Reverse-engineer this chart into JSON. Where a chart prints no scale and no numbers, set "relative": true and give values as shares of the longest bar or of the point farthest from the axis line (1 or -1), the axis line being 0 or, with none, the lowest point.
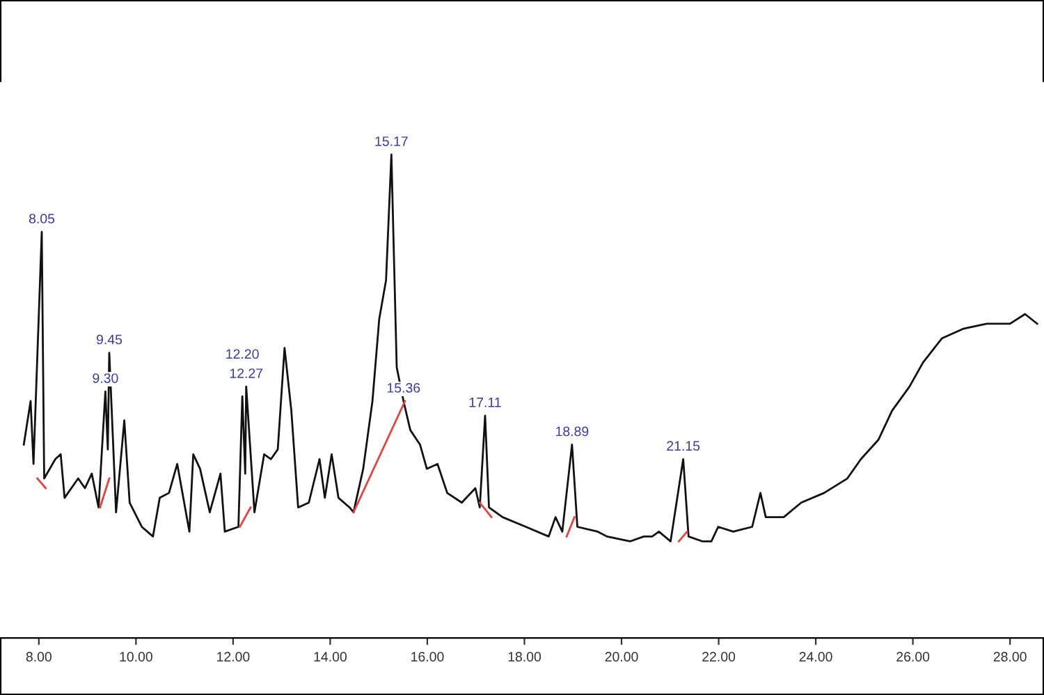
{
  "chart_data": {
    "type": "line",
    "relative": true,
    "grid": false,
    "tick_labels": "x",
    "marker": "none",
    "line_style": "solid",
    "xlim": [
      7.2,
      28.7
    ],
    "xticks": [
      {
        "value": 8,
        "label": "8.00"
      },
      {
        "value": 10,
        "label": "10.00"
      },
      {
        "value": 12,
        "label": "12.00"
      },
      {
        "value": 14,
        "label": "14.00"
      },
      {
        "value": 16,
        "label": "16.00"
      },
      {
        "value": 18,
        "label": "18.00"
      },
      {
        "value": 20,
        "label": "20.00"
      },
      {
        "value": 22,
        "label": "22.00"
      },
      {
        "value": 24,
        "label": "24.00"
      },
      {
        "value": 26,
        "label": "26.00"
      },
      {
        "value": 28,
        "label": "28.00"
      }
    ],
    "series": [
      {
        "color": "#111111",
        "x": [
          7.69,
          7.83,
          7.89,
          8.06,
          8.11,
          8.34,
          8.45,
          8.53,
          8.81,
          8.95,
          9.09,
          9.23,
          9.37,
          9.42,
          9.45,
          9.59,
          9.76,
          9.87,
          10.12,
          10.35,
          10.49,
          10.68,
          10.85,
          11.1,
          11.18,
          11.32,
          11.52,
          11.74,
          11.83,
          12.11,
          12.19,
          12.25,
          12.27,
          12.44,
          12.64,
          12.78,
          12.92,
          13.06,
          13.2,
          13.34,
          13.56,
          13.78,
          13.89,
          14.03,
          14.17,
          14.4,
          14.48,
          14.68,
          14.87,
          15.01,
          15.15,
          15.26,
          15.37,
          15.51,
          15.65,
          15.85,
          15.99,
          16.21,
          16.41,
          16.71,
          16.99,
          17.08,
          17.19,
          17.27,
          17.55,
          18.03,
          18.5,
          18.64,
          18.78,
          18.98,
          19.09,
          19.51,
          19.7,
          20.18,
          20.46,
          20.63,
          20.77,
          21.01,
          21.27,
          21.38,
          21.66,
          21.85,
          21.99,
          22.3,
          22.69,
          22.86,
          22.97,
          23.34,
          23.7,
          24.17,
          24.65,
          24.93,
          25.29,
          25.57,
          25.93,
          26.21,
          26.6,
          27.05,
          27.52,
          28.0,
          28.31,
          28.56
        ],
        "values": [
          0.4,
          0.49,
          0.36,
          0.84,
          0.33,
          0.37,
          0.38,
          0.29,
          0.33,
          0.31,
          0.34,
          0.27,
          0.51,
          0.39,
          0.59,
          0.26,
          0.45,
          0.28,
          0.23,
          0.21,
          0.29,
          0.3,
          0.36,
          0.22,
          0.38,
          0.35,
          0.26,
          0.34,
          0.22,
          0.23,
          0.5,
          0.34,
          0.52,
          0.26,
          0.38,
          0.37,
          0.39,
          0.6,
          0.47,
          0.27,
          0.28,
          0.37,
          0.29,
          0.38,
          0.29,
          0.27,
          0.26,
          0.35,
          0.49,
          0.66,
          0.74,
          1.0,
          0.56,
          0.49,
          0.43,
          0.4,
          0.35,
          0.36,
          0.3,
          0.28,
          0.31,
          0.27,
          0.46,
          0.27,
          0.25,
          0.23,
          0.21,
          0.25,
          0.22,
          0.4,
          0.23,
          0.22,
          0.21,
          0.2,
          0.21,
          0.21,
          0.22,
          0.2,
          0.37,
          0.21,
          0.2,
          0.2,
          0.23,
          0.22,
          0.23,
          0.3,
          0.25,
          0.25,
          0.28,
          0.3,
          0.33,
          0.37,
          0.41,
          0.47,
          0.52,
          0.57,
          0.62,
          0.64,
          0.65,
          0.65,
          0.67,
          0.65
        ]
      },
      {
        "color": "#e8413a",
        "x": [
          7.97,
          8.14
        ],
        "values": [
          0.33,
          0.31
        ]
      },
      {
        "color": "#e8413a",
        "x": [
          9.26,
          9.45
        ],
        "values": [
          0.27,
          0.33
        ]
      },
      {
        "color": "#e8413a",
        "x": [
          12.14,
          12.36
        ],
        "values": [
          0.23,
          0.27
        ]
      },
      {
        "color": "#e8413a",
        "x": [
          14.48,
          15.54
        ],
        "values": [
          0.26,
          0.49
        ]
      },
      {
        "color": "#e8413a",
        "x": [
          17.08,
          17.32
        ],
        "values": [
          0.28,
          0.25
        ]
      },
      {
        "color": "#e8413a",
        "x": [
          18.87,
          19.03
        ],
        "values": [
          0.21,
          0.25
        ]
      },
      {
        "color": "#e8413a",
        "x": [
          21.18,
          21.35
        ],
        "values": [
          0.2,
          0.22
        ]
      }
    ],
    "annotations": [
      {
        "text": "8.05",
        "x": 8.06,
        "y": 0.84
      },
      {
        "text": "9.45",
        "x": 9.45,
        "y": 0.59
      },
      {
        "text": "9.30",
        "x": 9.37,
        "y": 0.51
      },
      {
        "text": "12.20",
        "x": 12.19,
        "y": 0.5
      },
      {
        "text": "12.27",
        "x": 12.27,
        "y": 0.52
      },
      {
        "text": "15.17",
        "x": 15.26,
        "y": 1.0
      },
      {
        "text": "15.36",
        "x": 15.51,
        "y": 0.49
      },
      {
        "text": "17.11",
        "x": 17.19,
        "y": 0.46
      },
      {
        "text": "18.89",
        "x": 18.98,
        "y": 0.4
      },
      {
        "text": "21.15",
        "x": 21.27,
        "y": 0.37
      }
    ]
  }
}
